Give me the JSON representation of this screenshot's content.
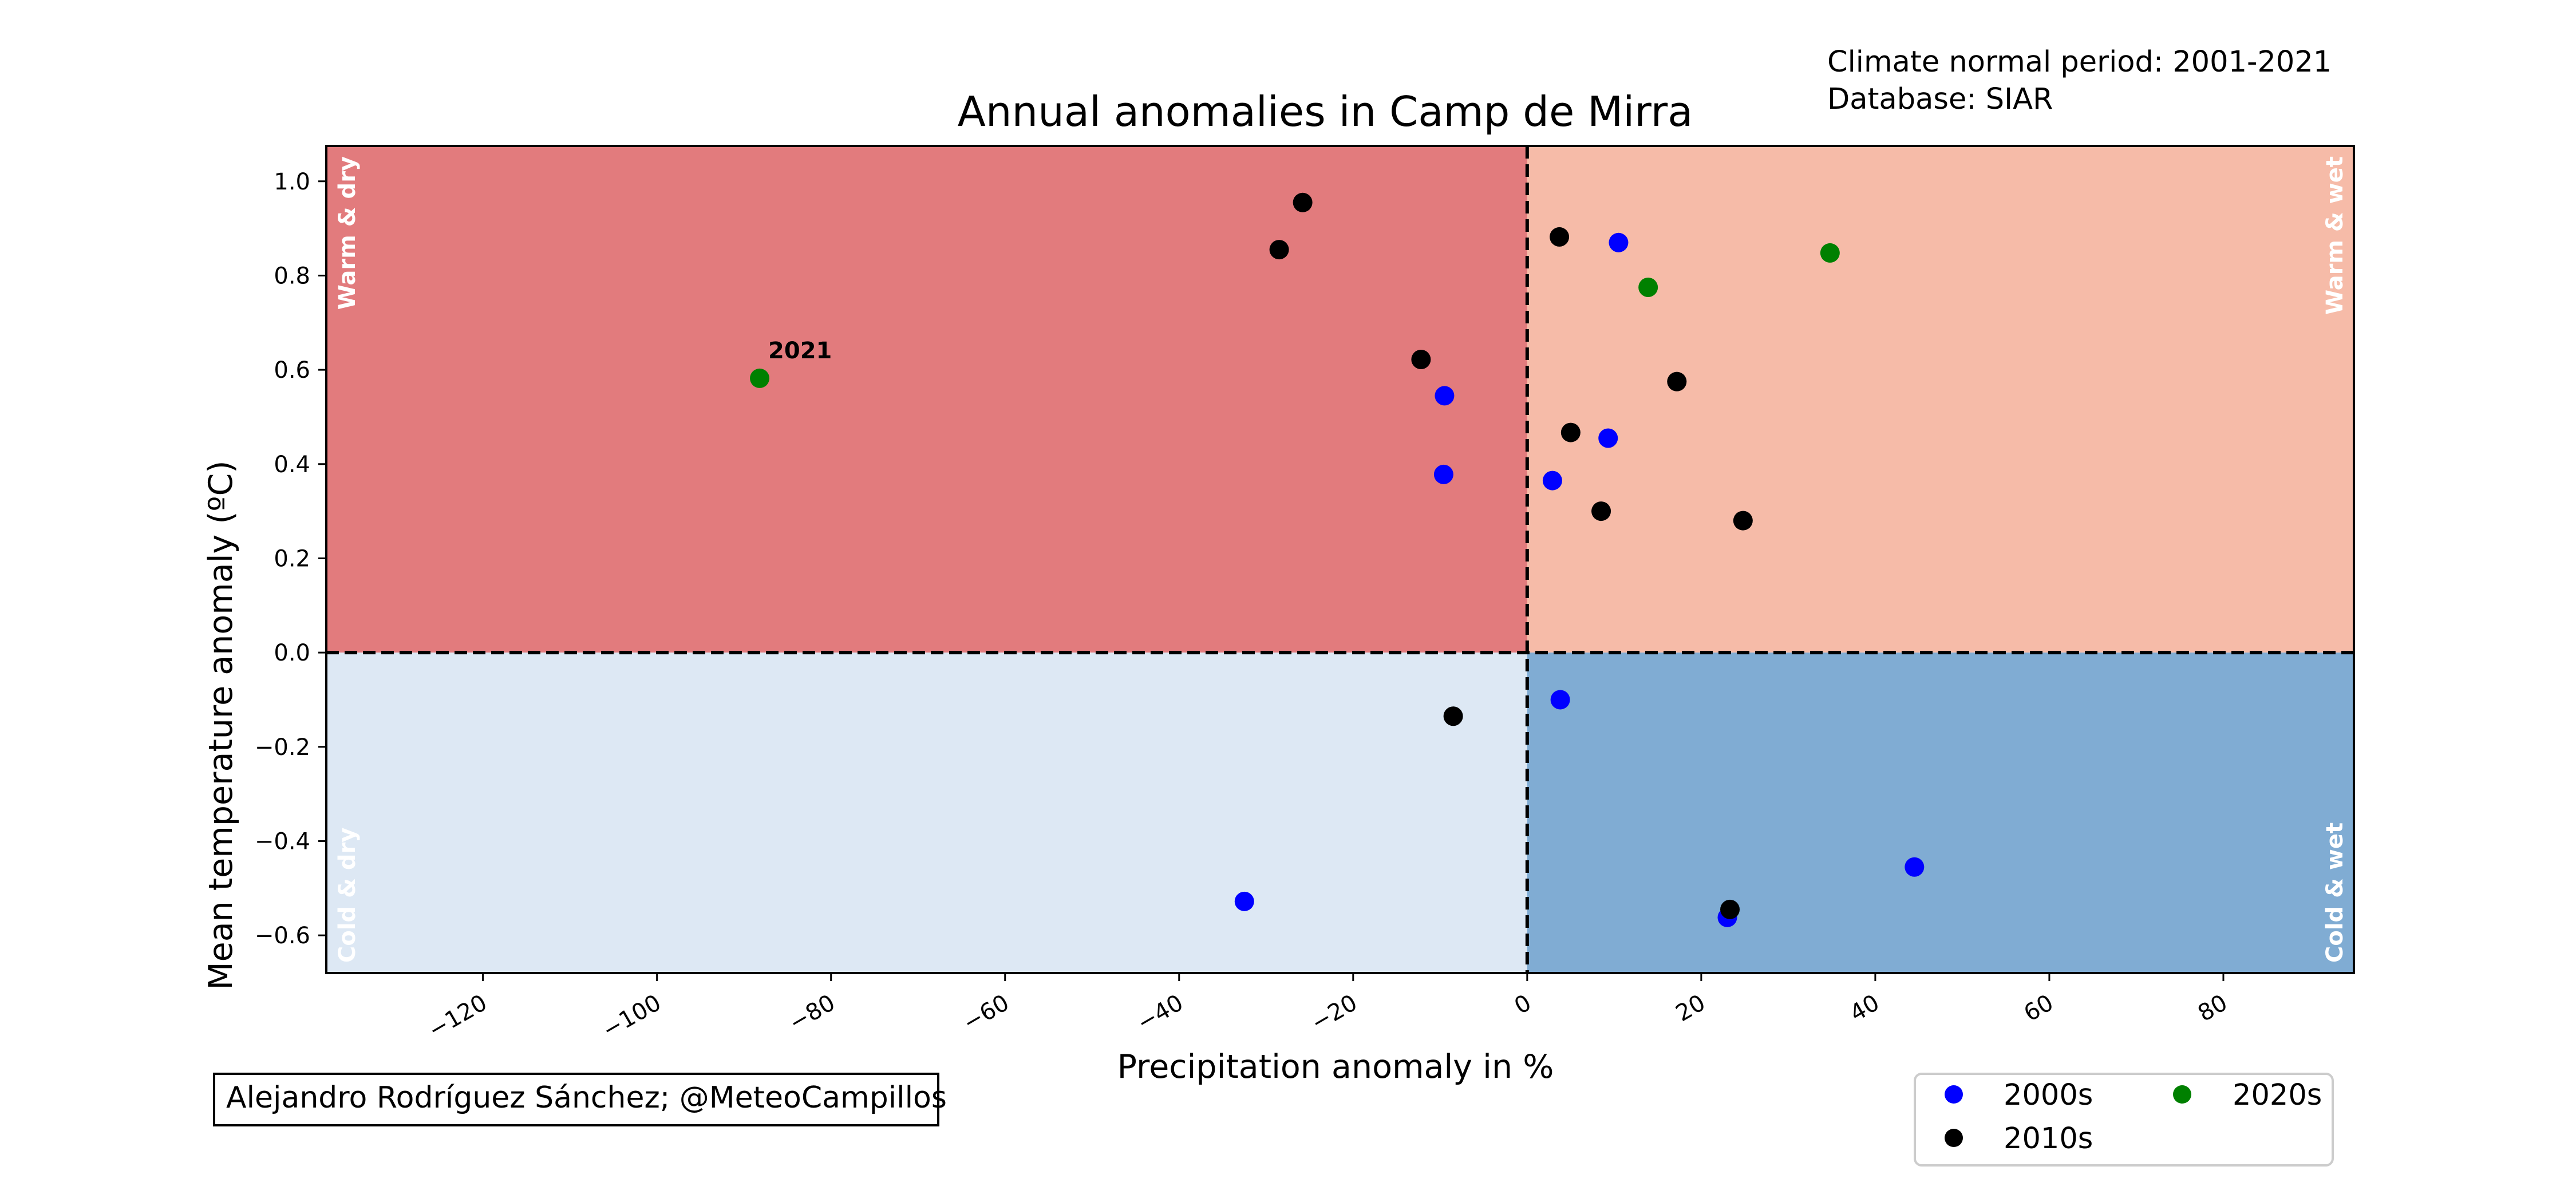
{
  "chart_data": {
    "type": "scatter",
    "title": "Annual anomalies in Camp de Mirra",
    "info_lines": [
      "Climate normal period: 2001-2021",
      "Database: SIAR"
    ],
    "xlabel": "Precipitation anomaly in %",
    "ylabel": "Mean temperature anomaly (ºC)",
    "xlim": [
      -138,
      95
    ],
    "ylim": [
      -0.68,
      1.075
    ],
    "xticks": [
      -120,
      -100,
      -80,
      -60,
      -40,
      -20,
      0,
      20,
      40,
      60,
      80
    ],
    "xtick_labels": [
      "−120",
      "−100",
      "−80",
      "−60",
      "−40",
      "−20",
      "0",
      "20",
      "40",
      "60",
      "80"
    ],
    "yticks": [
      1.0,
      0.8,
      0.6,
      0.4,
      0.2,
      0.0,
      -0.2,
      -0.4,
      -0.6
    ],
    "ytick_labels": [
      "1.0",
      "0.8",
      "0.6",
      "0.4",
      "0.2",
      "0.0",
      "−0.2",
      "−0.4",
      "−0.6"
    ],
    "grid": false,
    "reference_lines": {
      "x": 0,
      "y": 0,
      "style": "dashed",
      "color": "#000000"
    },
    "quadrants": [
      {
        "label": "Warm & dry",
        "color": "#e27b7d",
        "position": "top-left"
      },
      {
        "label": "Warm & wet",
        "color": "#f6bba8",
        "position": "top-right"
      },
      {
        "label": "Cold & dry",
        "color": "#dde8f4",
        "position": "bottom-left"
      },
      {
        "label": "Cold & wet",
        "color": "#80acd3",
        "position": "bottom-right"
      }
    ],
    "series": [
      {
        "name": "2000s",
        "color": "#0000ff",
        "points": [
          {
            "x": 10.5,
            "y": 0.87
          },
          {
            "x": -9.5,
            "y": 0.545
          },
          {
            "x": -9.6,
            "y": 0.378
          },
          {
            "x": 9.3,
            "y": 0.455
          },
          {
            "x": 2.9,
            "y": 0.365
          },
          {
            "x": 3.8,
            "y": -0.1
          },
          {
            "x": -32.5,
            "y": -0.528
          },
          {
            "x": 23.0,
            "y": -0.562
          },
          {
            "x": 44.5,
            "y": -0.455
          }
        ]
      },
      {
        "name": "2010s",
        "color": "#000000",
        "points": [
          {
            "x": -25.8,
            "y": 0.955
          },
          {
            "x": -28.5,
            "y": 0.855
          },
          {
            "x": 3.7,
            "y": 0.882
          },
          {
            "x": -12.2,
            "y": 0.622
          },
          {
            "x": 17.2,
            "y": 0.575
          },
          {
            "x": 5.0,
            "y": 0.467
          },
          {
            "x": 8.5,
            "y": 0.3
          },
          {
            "x": 24.8,
            "y": 0.28
          },
          {
            "x": -8.5,
            "y": -0.135
          },
          {
            "x": 23.3,
            "y": -0.545
          }
        ]
      },
      {
        "name": "2020s",
        "color": "#008000",
        "points": [
          {
            "x": -88.2,
            "y": 0.582,
            "label": "2021"
          },
          {
            "x": 13.9,
            "y": 0.775
          },
          {
            "x": 34.8,
            "y": 0.848
          }
        ]
      }
    ],
    "legend": {
      "position": "bottom-right",
      "entries": [
        "2000s",
        "2010s",
        "2020s"
      ]
    },
    "credit": "Alejandro Rodríguez Sánchez; @MeteoCampillos"
  }
}
